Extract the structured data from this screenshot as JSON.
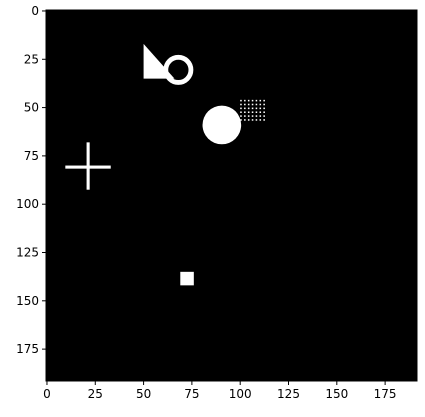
{
  "chart_data": {
    "type": "image",
    "xlim": [
      -0.5,
      191.5
    ],
    "ylim": [
      191.5,
      -0.5
    ],
    "xticks": [
      0,
      25,
      50,
      75,
      100,
      125,
      150,
      175
    ],
    "yticks": [
      0,
      25,
      50,
      75,
      100,
      125,
      150,
      175
    ]
  }
}
